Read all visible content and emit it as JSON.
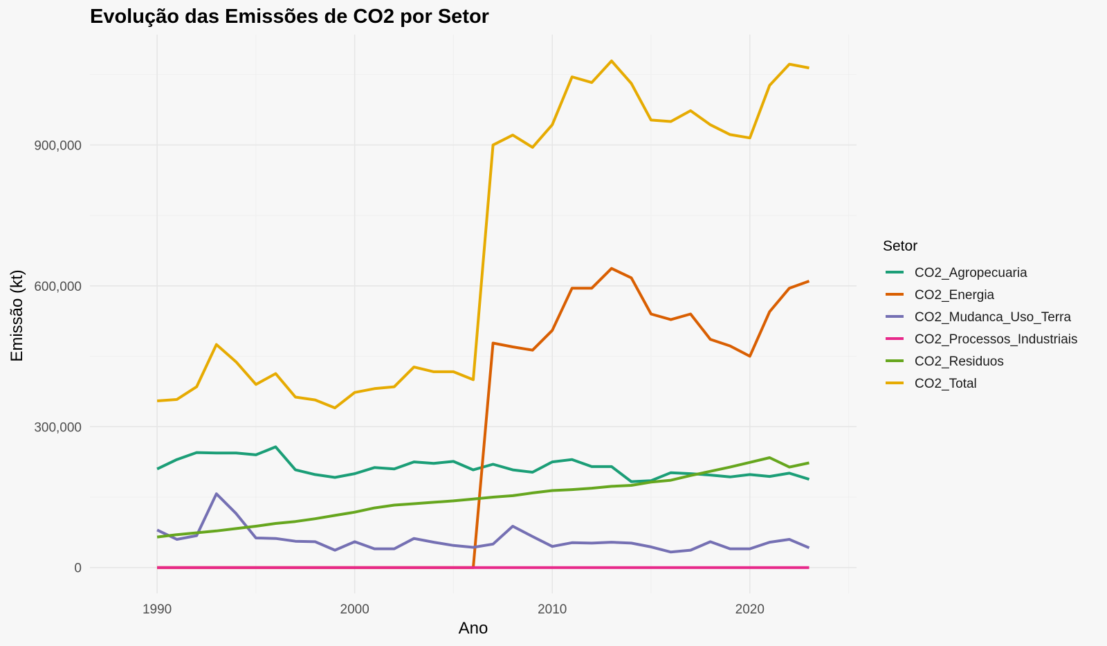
{
  "chart_data": {
    "type": "line",
    "title": "Evolução das Emissões de CO2 por Setor",
    "xlabel": "Ano",
    "ylabel": "Emissão (kt)",
    "xlim": [
      1986.6,
      2025.4
    ],
    "ylim": [
      -55000,
      1135000
    ],
    "x_ticks": [
      1990,
      2000,
      2010,
      2020
    ],
    "x_tick_labels": [
      "1990",
      "2000",
      "2010",
      "2020"
    ],
    "y_ticks": [
      0,
      300000,
      600000,
      900000
    ],
    "y_tick_labels": [
      "0",
      "300,000",
      "600,000",
      "900,000"
    ],
    "grid": true,
    "legend": {
      "title": "Setor",
      "placement": "right"
    },
    "x": [
      1990,
      1991,
      1992,
      1993,
      1994,
      1995,
      1996,
      1997,
      1998,
      1999,
      2000,
      2001,
      2002,
      2003,
      2004,
      2005,
      2006,
      2007,
      2008,
      2009,
      2010,
      2011,
      2012,
      2013,
      2014,
      2015,
      2016,
      2017,
      2018,
      2019,
      2020,
      2021,
      2022,
      2023
    ],
    "series": [
      {
        "name": "CO2_Agropecuaria",
        "color": "#1b9e77",
        "values": [
          210000,
          230000,
          245000,
          244000,
          244000,
          240000,
          257000,
          208000,
          198000,
          192000,
          200000,
          213000,
          210000,
          225000,
          222000,
          226000,
          208000,
          220000,
          208000,
          203000,
          225000,
          230000,
          215000,
          215000,
          183000,
          185000,
          202000,
          200000,
          197000,
          193000,
          198000,
          194000,
          201000,
          188000
        ]
      },
      {
        "name": "CO2_Energia",
        "color": "#d95f02",
        "values": [
          0,
          0,
          0,
          0,
          0,
          0,
          0,
          0,
          0,
          0,
          0,
          0,
          0,
          0,
          0,
          0,
          0,
          478000,
          470000,
          463000,
          505000,
          595000,
          595000,
          637000,
          617000,
          540000,
          528000,
          540000,
          486000,
          472000,
          450000,
          545000,
          595000,
          610000
        ]
      },
      {
        "name": "CO2_Mudanca_Uso_Terra",
        "color": "#7570b3",
        "values": [
          80000,
          60000,
          68000,
          157000,
          115000,
          63000,
          62000,
          56000,
          55000,
          37000,
          55000,
          40000,
          40000,
          62000,
          54000,
          47000,
          43000,
          50000,
          88000,
          66000,
          45000,
          53000,
          52000,
          54000,
          52000,
          44000,
          33000,
          37000,
          55000,
          40000,
          40000,
          54000,
          60000,
          42000
        ]
      },
      {
        "name": "CO2_Processos_Industriais",
        "color": "#e7298a",
        "values": [
          0,
          0,
          0,
          0,
          0,
          0,
          0,
          0,
          0,
          0,
          0,
          0,
          0,
          0,
          0,
          0,
          0,
          0,
          0,
          0,
          0,
          0,
          0,
          0,
          0,
          0,
          0,
          0,
          0,
          0,
          0,
          0,
          0,
          0
        ]
      },
      {
        "name": "CO2_Residuos",
        "color": "#66a61e",
        "values": [
          65000,
          70000,
          74000,
          78000,
          83000,
          88000,
          94000,
          98000,
          104000,
          111000,
          118000,
          127000,
          133000,
          136000,
          139000,
          142000,
          146000,
          150000,
          153000,
          159000,
          164000,
          166000,
          169000,
          173000,
          175000,
          182000,
          186000,
          196000,
          205000,
          214000,
          224000,
          234000,
          214000,
          223000
        ]
      },
      {
        "name": "CO2_Total",
        "color": "#e6ab02",
        "values": [
          355000,
          358000,
          385000,
          475000,
          438000,
          390000,
          413000,
          363000,
          357000,
          340000,
          373000,
          381000,
          385000,
          427000,
          417000,
          417000,
          400000,
          900000,
          921000,
          895000,
          943000,
          1045000,
          1033000,
          1079000,
          1031000,
          953000,
          950000,
          973000,
          943000,
          922000,
          915000,
          1027000,
          1072000,
          1064000
        ]
      }
    ]
  }
}
